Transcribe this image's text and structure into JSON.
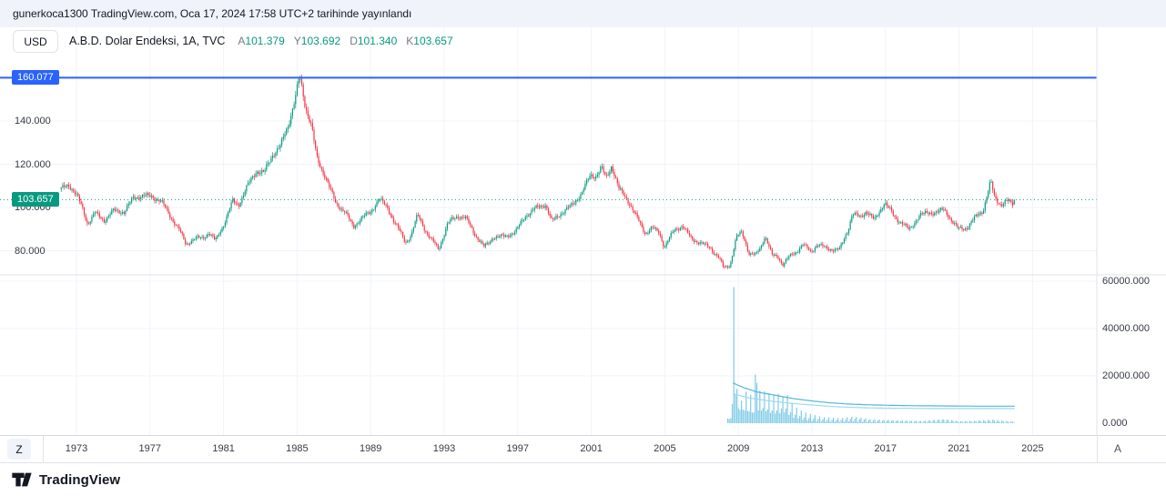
{
  "header": {
    "publish_text": "gunerkoca1300 TradingView.com, Oca 17, 2024 17:58 UTC+2 tarihinde yayınlandı"
  },
  "toolbar": {
    "currency_label": "USD"
  },
  "legend": {
    "title": "A.B.D. Dolar Endeksi, 1A, TVC",
    "ohlc": [
      {
        "key": "A",
        "value": "101.379"
      },
      {
        "key": "Y",
        "value": "103.692"
      },
      {
        "key": "D",
        "value": "101.340"
      },
      {
        "key": "K",
        "value": "103.657"
      }
    ]
  },
  "price_scale": {
    "line_label": "160.077",
    "last_price_label": "103.657",
    "ticks": [
      {
        "label": "140.000",
        "value": 140
      },
      {
        "label": "120.000",
        "value": 120
      },
      {
        "label": "100.000",
        "value": 100
      },
      {
        "label": "80.000",
        "value": 80
      }
    ]
  },
  "volume_scale": {
    "ticks": [
      {
        "label": "60000.000",
        "value": 60000
      },
      {
        "label": "40000.000",
        "value": 40000
      },
      {
        "label": "20000.000",
        "value": 20000
      },
      {
        "label": "0.000",
        "value": 0
      }
    ]
  },
  "time_axis": {
    "years": [
      "1973",
      "1977",
      "1981",
      "1985",
      "1989",
      "1993",
      "1997",
      "2001",
      "2005",
      "2009",
      "2013",
      "2017",
      "2021",
      "2025"
    ],
    "left_button": "Z",
    "right_button": "A"
  },
  "footer": {
    "brand": "TradingView"
  },
  "chart_data": {
    "type": "candlestick",
    "title": "A.B.D. Dolar Endeksi",
    "interval": "1A",
    "exchange": "TVC",
    "currency": "USD",
    "legend_position": "top-left",
    "grid": true,
    "last_candle": {
      "open": 101.379,
      "high": 103.692,
      "low": 101.34,
      "close": 103.657
    },
    "ref_line_price": 160.077,
    "current_price": 103.657,
    "start_year": 1972.17,
    "end_year": 2024.04,
    "volume_start_year": 2008.35,
    "price_axis_ticks": [
      160.077,
      140,
      120,
      103.657,
      100,
      80
    ],
    "volume_axis_ticks": [
      60000,
      40000,
      20000,
      0
    ],
    "colors": {
      "up": "#089981",
      "down": "#f23645",
      "ref_line": "#2962ff",
      "volume": "#72c5e3",
      "volume_ma1": "#55b6da",
      "volume_ma2": "#9bdaf0",
      "grid": "#f0f3fa",
      "separator": "#e0e3eb"
    },
    "price_anchors": [
      [
        1972.17,
        108.5
      ],
      [
        1972.6,
        110.5
      ],
      [
        1973.0,
        106.0
      ],
      [
        1973.3,
        100.0
      ],
      [
        1973.6,
        92.5
      ],
      [
        1974.0,
        97.5
      ],
      [
        1974.5,
        94.0
      ],
      [
        1975.0,
        98.5
      ],
      [
        1975.6,
        98.0
      ],
      [
        1976.1,
        104.5
      ],
      [
        1976.6,
        105.5
      ],
      [
        1977.1,
        105.0
      ],
      [
        1977.6,
        103.0
      ],
      [
        1978.1,
        96.0
      ],
      [
        1978.6,
        89.5
      ],
      [
        1978.95,
        83.0
      ],
      [
        1979.4,
        85.5
      ],
      [
        1979.9,
        86.0
      ],
      [
        1980.2,
        88.5
      ],
      [
        1980.55,
        84.5
      ],
      [
        1981.0,
        92.0
      ],
      [
        1981.5,
        103.0
      ],
      [
        1981.8,
        101.0
      ],
      [
        1982.3,
        110.0
      ],
      [
        1982.8,
        117.0
      ],
      [
        1983.2,
        116.0
      ],
      [
        1983.7,
        125.0
      ],
      [
        1984.1,
        128.5
      ],
      [
        1984.5,
        137.5
      ],
      [
        1984.9,
        151.0
      ],
      [
        1985.13,
        160.5
      ],
      [
        1985.45,
        146.5
      ],
      [
        1985.75,
        139.5
      ],
      [
        1986.1,
        121.5
      ],
      [
        1986.6,
        113.5
      ],
      [
        1987.1,
        101.5
      ],
      [
        1987.6,
        98.5
      ],
      [
        1988.05,
        90.5
      ],
      [
        1988.5,
        95.5
      ],
      [
        1989.0,
        97.5
      ],
      [
        1989.45,
        104.5
      ],
      [
        1989.95,
        99.0
      ],
      [
        1990.4,
        92.0
      ],
      [
        1990.9,
        83.5
      ],
      [
        1991.2,
        87.5
      ],
      [
        1991.55,
        96.5
      ],
      [
        1992.0,
        89.0
      ],
      [
        1992.45,
        83.5
      ],
      [
        1992.7,
        80.5
      ],
      [
        1993.2,
        93.0
      ],
      [
        1993.75,
        96.0
      ],
      [
        1994.15,
        95.5
      ],
      [
        1994.6,
        88.5
      ],
      [
        1995.2,
        81.5
      ],
      [
        1995.7,
        86.5
      ],
      [
        1996.3,
        86.5
      ],
      [
        1996.9,
        89.0
      ],
      [
        1997.4,
        96.0
      ],
      [
        1997.95,
        99.5
      ],
      [
        1998.5,
        101.5
      ],
      [
        1998.85,
        93.5
      ],
      [
        1999.3,
        97.0
      ],
      [
        1999.95,
        101.0
      ],
      [
        2000.5,
        107.0
      ],
      [
        2000.95,
        115.0
      ],
      [
        2001.25,
        114.5
      ],
      [
        2001.55,
        118.5
      ],
      [
        2001.8,
        113.5
      ],
      [
        2002.1,
        119.5
      ],
      [
        2002.5,
        108.5
      ],
      [
        2002.95,
        104.0
      ],
      [
        2003.4,
        96.5
      ],
      [
        2003.95,
        88.0
      ],
      [
        2004.3,
        90.5
      ],
      [
        2004.7,
        88.5
      ],
      [
        2004.97,
        81.5
      ],
      [
        2005.5,
        89.5
      ],
      [
        2005.95,
        91.5
      ],
      [
        2006.45,
        85.5
      ],
      [
        2006.95,
        83.5
      ],
      [
        2007.45,
        81.5
      ],
      [
        2007.95,
        76.5
      ],
      [
        2008.2,
        72.0
      ],
      [
        2008.55,
        73.5
      ],
      [
        2008.9,
        86.5
      ],
      [
        2009.2,
        88.5
      ],
      [
        2009.6,
        78.5
      ],
      [
        2009.95,
        78.0
      ],
      [
        2010.2,
        81.5
      ],
      [
        2010.45,
        87.0
      ],
      [
        2010.85,
        77.5
      ],
      [
        2011.15,
        77.5
      ],
      [
        2011.4,
        73.5
      ],
      [
        2011.8,
        77.5
      ],
      [
        2012.15,
        79.5
      ],
      [
        2012.5,
        83.0
      ],
      [
        2012.95,
        79.5
      ],
      [
        2013.3,
        83.0
      ],
      [
        2013.65,
        81.5
      ],
      [
        2014.1,
        80.5
      ],
      [
        2014.5,
        80.5
      ],
      [
        2014.95,
        89.5
      ],
      [
        2015.2,
        97.0
      ],
      [
        2015.65,
        95.5
      ],
      [
        2015.95,
        98.5
      ],
      [
        2016.4,
        94.0
      ],
      [
        2016.95,
        102.5
      ],
      [
        2017.5,
        95.5
      ],
      [
        2017.95,
        92.5
      ],
      [
        2018.3,
        89.5
      ],
      [
        2018.85,
        96.5
      ],
      [
        2019.35,
        97.5
      ],
      [
        2019.85,
        98.0
      ],
      [
        2020.2,
        99.0
      ],
      [
        2020.65,
        93.5
      ],
      [
        2020.95,
        90.0
      ],
      [
        2021.4,
        90.5
      ],
      [
        2021.95,
        96.0
      ],
      [
        2022.3,
        98.5
      ],
      [
        2022.72,
        112.0
      ],
      [
        2022.95,
        104.0
      ],
      [
        2023.3,
        101.5
      ],
      [
        2023.6,
        103.0
      ],
      [
        2023.92,
        101.4
      ],
      [
        2024.04,
        103.657
      ]
    ],
    "volume_anchors": [
      [
        2008.35,
        200
      ],
      [
        2008.6,
        3500
      ],
      [
        2008.95,
        8500
      ],
      [
        2009.4,
        7500
      ],
      [
        2009.9,
        6000
      ],
      [
        2010.3,
        8500
      ],
      [
        2010.7,
        7000
      ],
      [
        2011.1,
        6500
      ],
      [
        2011.5,
        8000
      ],
      [
        2012.0,
        4200
      ],
      [
        2012.5,
        2800
      ],
      [
        2013.0,
        2100
      ],
      [
        2013.6,
        1500
      ],
      [
        2014.5,
        1250
      ],
      [
        2015.3,
        1700
      ],
      [
        2016.1,
        1050
      ],
      [
        2017.0,
        850
      ],
      [
        2018.0,
        700
      ],
      [
        2019.0,
        620
      ],
      [
        2020.2,
        1150
      ],
      [
        2021.0,
        520
      ],
      [
        2022.0,
        680
      ],
      [
        2022.8,
        950
      ],
      [
        2023.5,
        580
      ],
      [
        2024.04,
        500
      ]
    ],
    "volume_spikes": [
      [
        2008.79,
        57500
      ],
      [
        2008.84,
        12000
      ],
      [
        2009.21,
        9500
      ],
      [
        2009.92,
        20500
      ],
      [
        2010.04,
        17000
      ],
      [
        2010.46,
        13500
      ],
      [
        2011.21,
        12500
      ],
      [
        2011.42,
        11000
      ]
    ],
    "volume_ma1": [
      [
        2008.7,
        17000
      ],
      [
        2009.3,
        15000
      ],
      [
        2010.0,
        13200
      ],
      [
        2011.0,
        11800
      ],
      [
        2012.0,
        10400
      ],
      [
        2013.0,
        9400
      ],
      [
        2014.0,
        8600
      ],
      [
        2015.0,
        8100
      ],
      [
        2016.0,
        7800
      ],
      [
        2017.0,
        7600
      ],
      [
        2018.0,
        7450
      ],
      [
        2019.0,
        7350
      ],
      [
        2020.0,
        7300
      ],
      [
        2021.0,
        7250
      ],
      [
        2022.0,
        7200
      ],
      [
        2023.0,
        7200
      ],
      [
        2024.04,
        7200
      ]
    ],
    "volume_ma2": [
      [
        2008.7,
        12500
      ],
      [
        2009.5,
        10800
      ],
      [
        2010.5,
        9600
      ],
      [
        2011.5,
        8700
      ],
      [
        2012.5,
        8000
      ],
      [
        2013.5,
        7400
      ],
      [
        2014.5,
        6900
      ],
      [
        2015.5,
        6600
      ],
      [
        2016.5,
        6400
      ],
      [
        2017.5,
        6300
      ],
      [
        2018.5,
        6250
      ],
      [
        2019.5,
        6200
      ],
      [
        2020.5,
        6200
      ],
      [
        2021.5,
        6200
      ],
      [
        2022.5,
        6200
      ],
      [
        2023.5,
        6200
      ],
      [
        2024.04,
        6200
      ]
    ]
  }
}
